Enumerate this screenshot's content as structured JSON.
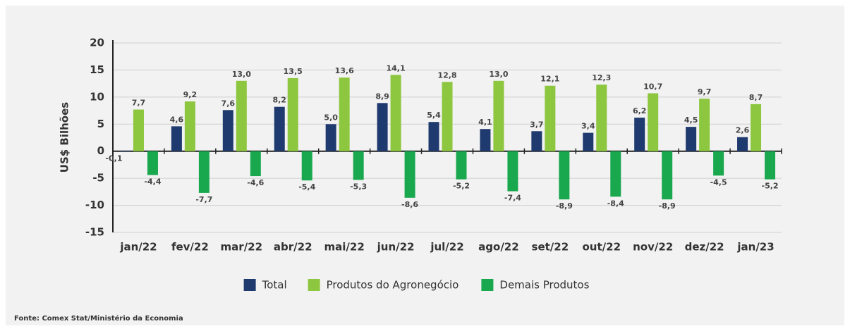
{
  "chart_data": {
    "type": "bar",
    "y_label": "US$ Bilhões",
    "source": "Fonte: Comex Stat/Ministério da Economia",
    "categories": [
      "jan/22",
      "fev/22",
      "mar/22",
      "abr/22",
      "mai/22",
      "jun/22",
      "jul/22",
      "ago/22",
      "set/22",
      "out/22",
      "nov/22",
      "dez/22",
      "jan/23"
    ],
    "series": [
      {
        "name": "Total",
        "color": "#1f3a6e",
        "values": [
          -0.1,
          4.6,
          7.6,
          8.2,
          5.0,
          8.9,
          5.4,
          4.1,
          3.7,
          3.4,
          6.2,
          4.5,
          2.6
        ],
        "value_labels": [
          "-0,1",
          "4,6",
          "7,6",
          "8,2",
          "5,0",
          "8,9",
          "5,4",
          "4,1",
          "3,7",
          "3,4",
          "6,2",
          "4,5",
          "2,6"
        ]
      },
      {
        "name": "Produtos do Agronegócio",
        "color": "#8dc63f",
        "values": [
          7.7,
          9.2,
          13.0,
          13.5,
          13.6,
          14.1,
          12.8,
          13.0,
          12.1,
          12.3,
          10.7,
          9.7,
          8.7
        ],
        "value_labels": [
          "7,7",
          "9,2",
          "13,0",
          "13,5",
          "13,6",
          "14,1",
          "12,8",
          "13,0",
          "12,1",
          "12,3",
          "10,7",
          "9,7",
          "8,7"
        ]
      },
      {
        "name": "Demais Produtos",
        "color": "#1aa84f",
        "values": [
          -4.4,
          -7.7,
          -4.6,
          -5.4,
          -5.3,
          -8.6,
          -5.2,
          -7.4,
          -8.9,
          -8.4,
          -8.9,
          -4.5,
          -5.2
        ],
        "value_labels": [
          "-4,4",
          "-7,7",
          "-4,6",
          "-5,4",
          "-5,3",
          "-8,6",
          "-5,2",
          "-7,4",
          "-8,9",
          "-8,4",
          "-8,9",
          "-4,5",
          "-5,2"
        ]
      }
    ],
    "ylim": [
      -15,
      20
    ],
    "yticks": [
      -15,
      -10,
      -5,
      0,
      5,
      10,
      15,
      20
    ],
    "grid": true,
    "legend": "bottom"
  }
}
